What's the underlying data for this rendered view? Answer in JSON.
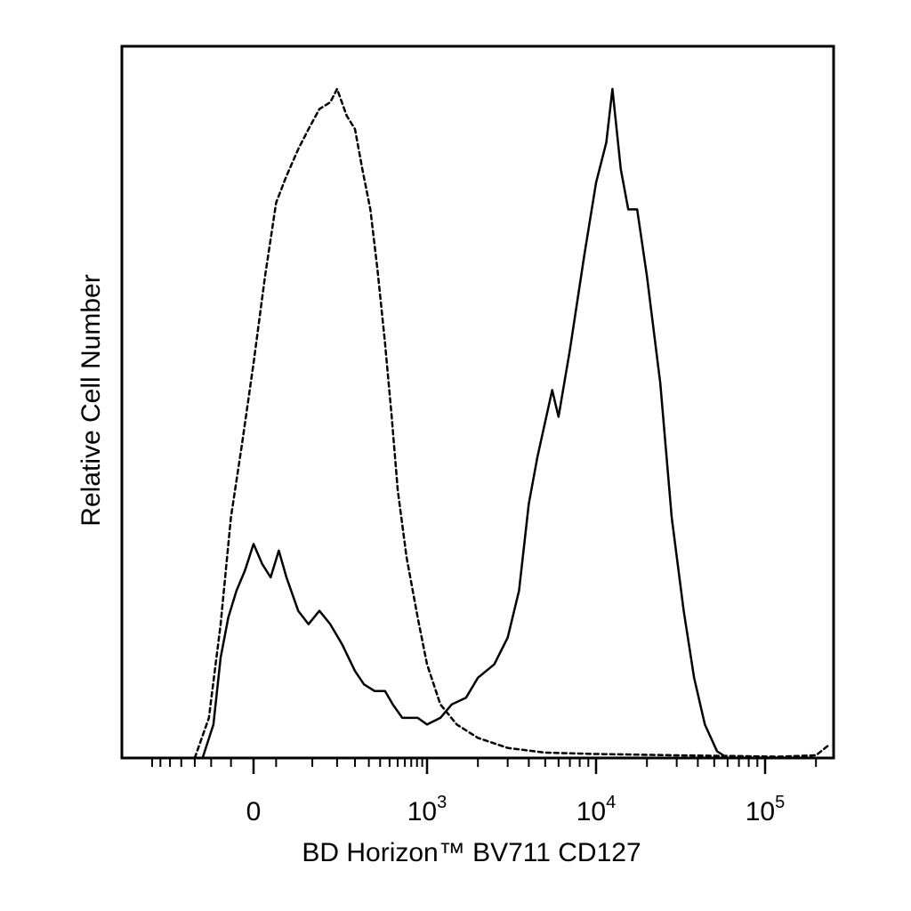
{
  "chart_data": {
    "type": "line",
    "title": "",
    "xlabel": "BD Horizon™ BV711 CD127",
    "ylabel": "Relative Cell Number",
    "x_scale": "biexponential (linear near 0, log above ~10^3)",
    "xlim": [
      -300,
      250000
    ],
    "ylim": [
      0,
      1
    ],
    "grid": false,
    "legend": "none",
    "x_ticks": [
      {
        "value": 0,
        "base": "0",
        "exp": ""
      },
      {
        "value": 1000,
        "base": "10",
        "exp": "3"
      },
      {
        "value": 10000,
        "base": "10",
        "exp": "4"
      },
      {
        "value": 100000,
        "base": "10",
        "exp": "5"
      }
    ],
    "series": [
      {
        "style": "dashed",
        "points": [
          [
            -120,
            0.0
          ],
          [
            -85,
            0.06
          ],
          [
            -60,
            0.2
          ],
          [
            -40,
            0.36
          ],
          [
            -20,
            0.47
          ],
          [
            0,
            0.59
          ],
          [
            20,
            0.72
          ],
          [
            40,
            0.83
          ],
          [
            60,
            0.87
          ],
          [
            85,
            0.91
          ],
          [
            110,
            0.94
          ],
          [
            140,
            0.97
          ],
          [
            175,
            0.98
          ],
          [
            200,
            1.0
          ],
          [
            240,
            0.96
          ],
          [
            280,
            0.94
          ],
          [
            320,
            0.88
          ],
          [
            370,
            0.82
          ],
          [
            420,
            0.73
          ],
          [
            480,
            0.62
          ],
          [
            540,
            0.51
          ],
          [
            600,
            0.4
          ],
          [
            700,
            0.3
          ],
          [
            850,
            0.21
          ],
          [
            1000,
            0.14
          ],
          [
            1200,
            0.08
          ],
          [
            1500,
            0.05
          ],
          [
            2000,
            0.03
          ],
          [
            3000,
            0.015
          ],
          [
            5000,
            0.008
          ],
          [
            10000,
            0.006
          ],
          [
            30000,
            0.004
          ],
          [
            60000,
            0.003
          ],
          [
            120000,
            0.002
          ],
          [
            200000,
            0.004
          ],
          [
            240000,
            0.02
          ]
        ]
      },
      {
        "style": "solid",
        "points": [
          [
            -100,
            0.0
          ],
          [
            -75,
            0.05
          ],
          [
            -60,
            0.15
          ],
          [
            -45,
            0.21
          ],
          [
            -30,
            0.25
          ],
          [
            -15,
            0.28
          ],
          [
            0,
            0.32
          ],
          [
            15,
            0.29
          ],
          [
            30,
            0.27
          ],
          [
            45,
            0.31
          ],
          [
            60,
            0.27
          ],
          [
            85,
            0.22
          ],
          [
            110,
            0.2
          ],
          [
            140,
            0.22
          ],
          [
            175,
            0.2
          ],
          [
            220,
            0.17
          ],
          [
            280,
            0.13
          ],
          [
            330,
            0.11
          ],
          [
            400,
            0.1
          ],
          [
            480,
            0.1
          ],
          [
            550,
            0.08
          ],
          [
            650,
            0.06
          ],
          [
            750,
            0.06
          ],
          [
            850,
            0.06
          ],
          [
            1000,
            0.05
          ],
          [
            1200,
            0.06
          ],
          [
            1400,
            0.08
          ],
          [
            1700,
            0.09
          ],
          [
            2000,
            0.12
          ],
          [
            2500,
            0.14
          ],
          [
            3000,
            0.18
          ],
          [
            3500,
            0.25
          ],
          [
            4000,
            0.38
          ],
          [
            4500,
            0.45
          ],
          [
            5500,
            0.55
          ],
          [
            6000,
            0.51
          ],
          [
            7000,
            0.61
          ],
          [
            8500,
            0.75
          ],
          [
            10000,
            0.86
          ],
          [
            11500,
            0.92
          ],
          [
            12500,
            1.0
          ],
          [
            14000,
            0.88
          ],
          [
            15500,
            0.82
          ],
          [
            17500,
            0.82
          ],
          [
            20000,
            0.72
          ],
          [
            24000,
            0.56
          ],
          [
            28000,
            0.36
          ],
          [
            33000,
            0.22
          ],
          [
            38000,
            0.12
          ],
          [
            44000,
            0.05
          ],
          [
            52000,
            0.01
          ],
          [
            60000,
            0.0
          ]
        ]
      }
    ]
  }
}
